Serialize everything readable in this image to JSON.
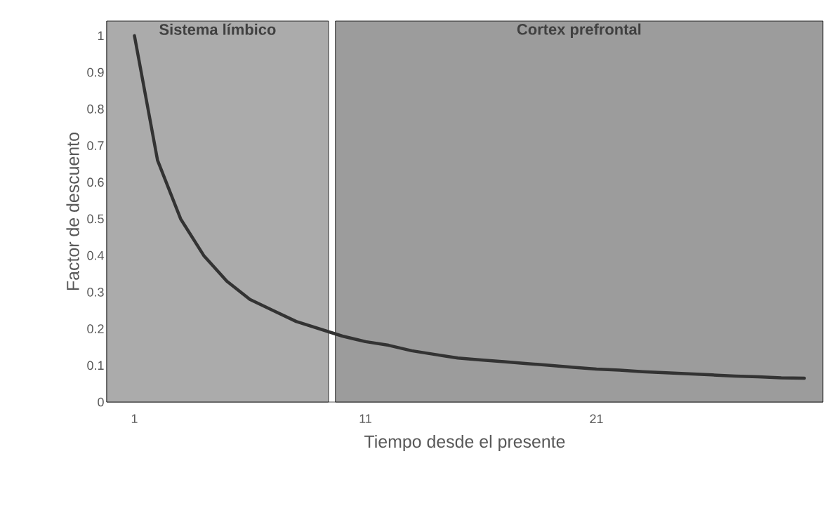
{
  "chart_data": {
    "type": "line",
    "xlabel": "Tiempo desde el presente",
    "ylabel": "Factor de descuento",
    "x": [
      1,
      2,
      3,
      4,
      5,
      6,
      7,
      8,
      9,
      10,
      11,
      12,
      13,
      14,
      15,
      16,
      17,
      18,
      19,
      20,
      21,
      22,
      23,
      24,
      25,
      26,
      27,
      28,
      29,
      30
    ],
    "series": [
      {
        "color": "#333333",
        "values": [
          1,
          0.66,
          0.5,
          0.4,
          0.33,
          0.28,
          0.25,
          0.22,
          0.2,
          0.18,
          0.165,
          0.155,
          0.14,
          0.13,
          0.12,
          0.115,
          0.11,
          0.105,
          0.1,
          0.095,
          0.09,
          0.087,
          0.083,
          0.08,
          0.077,
          0.074,
          0.071,
          0.069,
          0.066,
          0.065
        ]
      }
    ],
    "bands": [
      {
        "axis": "x",
        "from": -0.2,
        "to": 9.4,
        "label": "Sistema límbico",
        "color": "#ababab"
      },
      {
        "axis": "x",
        "from": 9.7,
        "to": 30.8,
        "label": "Cortex prefrontal",
        "color": "#9c9c9c"
      }
    ],
    "xlim": [
      -0.2,
      30.8
    ],
    "ylim": [
      0,
      1.04
    ],
    "xticks": [
      1,
      11,
      21
    ],
    "yticks": [
      0,
      {
        "value": 0.1,
        "label": "0.1"
      },
      {
        "value": 0.2,
        "label": "0.2"
      },
      {
        "value": 0.3,
        "label": "0.3"
      },
      {
        "value": 0.4,
        "label": "0.4"
      },
      {
        "value": 0.5,
        "label": "0.5"
      },
      {
        "value": 0.6,
        "label": "0.6"
      },
      {
        "value": 0.7,
        "label": "0.7"
      },
      {
        "value": 0.8,
        "label": "0.8"
      },
      {
        "value": 0.9,
        "label": "0.9"
      },
      1
    ],
    "grid": false,
    "legend": false,
    "marker": "none",
    "line_style": "solid"
  }
}
